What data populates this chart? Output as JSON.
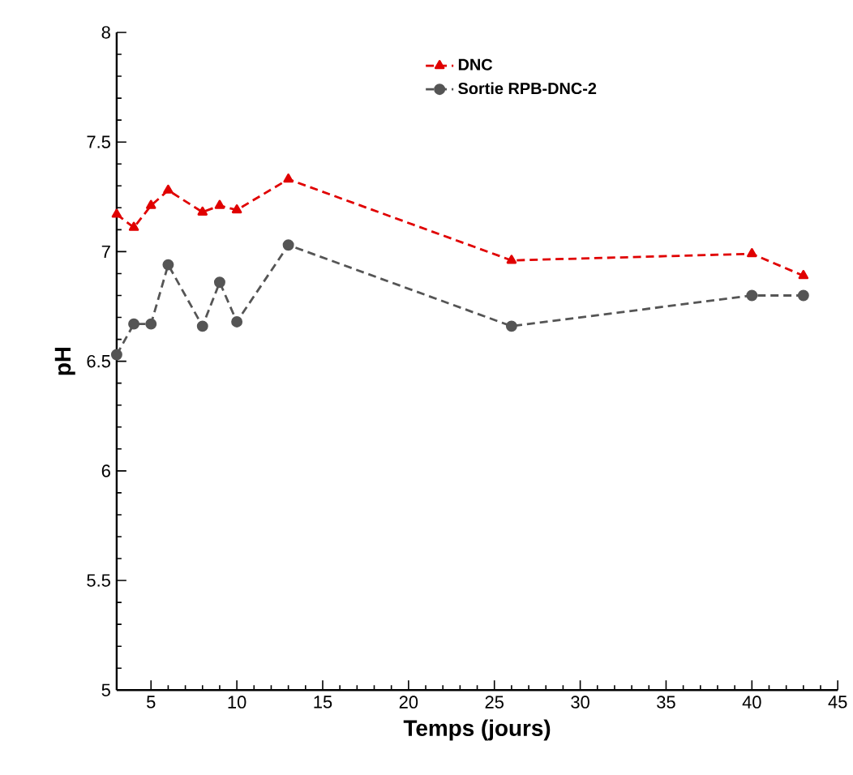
{
  "chart_data": {
    "type": "line",
    "xlabel": "Temps (jours)",
    "ylabel": "pH",
    "x": [
      3,
      4,
      5,
      6,
      8,
      9,
      10,
      13,
      26,
      40,
      43
    ],
    "series": [
      {
        "name": "DNC",
        "color": "#e00000",
        "marker": "triangle",
        "line_style": "dashed",
        "values": [
          7.17,
          7.11,
          7.21,
          7.28,
          7.18,
          7.21,
          7.19,
          7.33,
          6.96,
          6.99,
          6.89
        ]
      },
      {
        "name": "Sortie RPB-DNC-2",
        "color": "#555555",
        "marker": "circle",
        "line_style": "dashed",
        "values": [
          6.53,
          6.67,
          6.67,
          6.94,
          6.66,
          6.86,
          6.68,
          7.03,
          6.66,
          6.8,
          6.8
        ]
      }
    ],
    "xlim": [
      3,
      45
    ],
    "xticks": [
      5,
      10,
      15,
      20,
      25,
      30,
      35,
      40,
      45
    ],
    "ylim": [
      5,
      8
    ],
    "yticks": [
      5,
      5.5,
      6,
      6.5,
      7,
      7.5,
      8
    ],
    "grid": false,
    "legend": "top right"
  }
}
